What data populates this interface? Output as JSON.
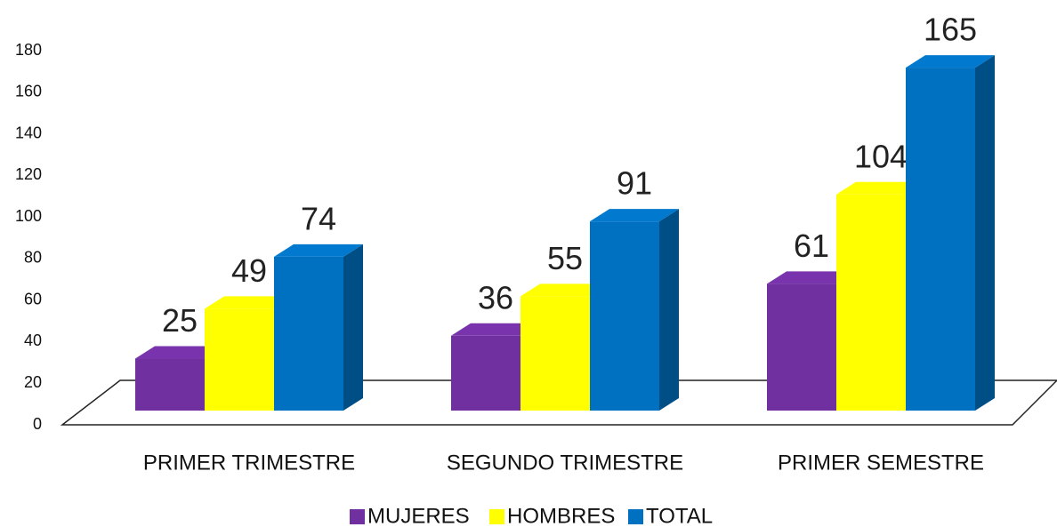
{
  "chart_data": {
    "type": "bar",
    "categories": [
      "PRIMER TRIMESTRE",
      "SEGUNDO TRIMESTRE",
      "PRIMER SEMESTRE"
    ],
    "series": [
      {
        "name": "MUJERES",
        "color": "#7030a0",
        "values": [
          25,
          36,
          61
        ]
      },
      {
        "name": "HOMBRES",
        "color": "#ffff00",
        "values": [
          49,
          55,
          104
        ]
      },
      {
        "name": "TOTAL",
        "color": "#0070c0",
        "values": [
          74,
          91,
          165
        ]
      }
    ],
    "ylim": [
      0,
      180
    ],
    "yticks": [
      0,
      20,
      40,
      60,
      80,
      100,
      120,
      140,
      160,
      180
    ],
    "data_labels": true,
    "legend": "bottom"
  }
}
